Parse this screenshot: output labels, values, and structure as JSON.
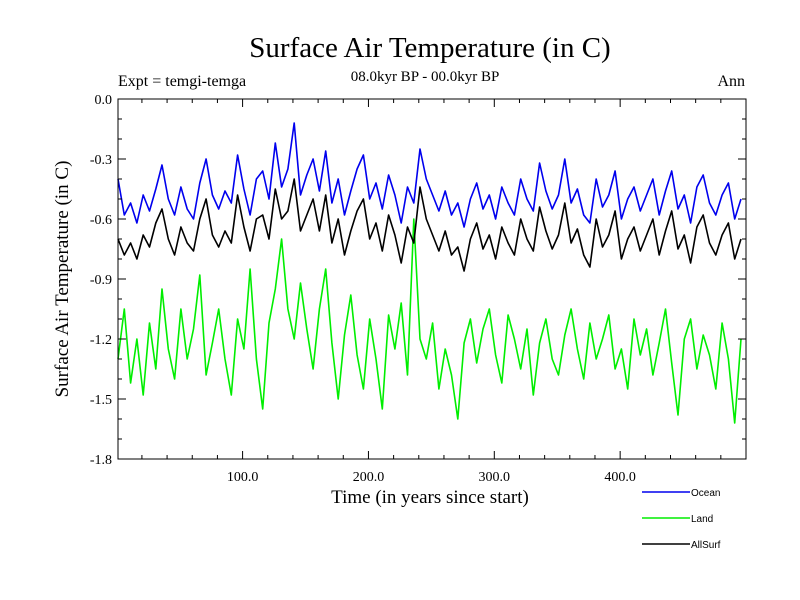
{
  "chart_data": {
    "type": "line",
    "title": "Surface Air Temperature (in C)",
    "subtitle": "08.0kyr BP - 00.0kyr BP",
    "left_label": "Expt = temgi-temga",
    "right_label": "Ann",
    "xlabel": "Time (in years since start)",
    "ylabel": "Surface Air Temperature (in C)",
    "xlim": [
      1,
      500
    ],
    "ylim": [
      -1.8,
      0.0
    ],
    "x_ticks": [
      100,
      200,
      300,
      400
    ],
    "x_tick_labels": [
      "100.0",
      "200.0",
      "300.0",
      "400.0"
    ],
    "y_ticks": [
      0.0,
      -0.3,
      -0.6,
      -0.9,
      -1.2,
      -1.5,
      -1.8
    ],
    "y_tick_labels": [
      "0.0",
      "-0.3",
      "-0.6",
      "-0.9",
      "-1.2",
      "-1.5",
      "-1.8"
    ],
    "x_start": 1,
    "x_step": 5,
    "series": [
      {
        "name": "Ocean",
        "color": "#0000ee",
        "values": [
          -0.4,
          -0.58,
          -0.52,
          -0.62,
          -0.48,
          -0.56,
          -0.45,
          -0.33,
          -0.5,
          -0.58,
          -0.44,
          -0.55,
          -0.6,
          -0.42,
          -0.3,
          -0.48,
          -0.55,
          -0.46,
          -0.52,
          -0.28,
          -0.45,
          -0.58,
          -0.4,
          -0.36,
          -0.5,
          -0.22,
          -0.44,
          -0.35,
          -0.12,
          -0.48,
          -0.38,
          -0.3,
          -0.46,
          -0.26,
          -0.52,
          -0.4,
          -0.58,
          -0.46,
          -0.35,
          -0.28,
          -0.5,
          -0.42,
          -0.55,
          -0.38,
          -0.48,
          -0.62,
          -0.44,
          -0.52,
          -0.25,
          -0.4,
          -0.48,
          -0.56,
          -0.46,
          -0.58,
          -0.52,
          -0.64,
          -0.5,
          -0.42,
          -0.55,
          -0.48,
          -0.6,
          -0.44,
          -0.52,
          -0.58,
          -0.4,
          -0.5,
          -0.56,
          -0.32,
          -0.46,
          -0.55,
          -0.48,
          -0.3,
          -0.52,
          -0.45,
          -0.58,
          -0.62,
          -0.4,
          -0.54,
          -0.48,
          -0.36,
          -0.6,
          -0.5,
          -0.44,
          -0.56,
          -0.48,
          -0.4,
          -0.58,
          -0.46,
          -0.36,
          -0.55,
          -0.48,
          -0.62,
          -0.44,
          -0.38,
          -0.52,
          -0.58,
          -0.48,
          -0.42,
          -0.6,
          -0.5
        ]
      },
      {
        "name": "Land",
        "color": "#00ee00",
        "values": [
          -1.3,
          -1.05,
          -1.42,
          -1.2,
          -1.48,
          -1.12,
          -1.35,
          -0.95,
          -1.25,
          -1.4,
          -1.05,
          -1.3,
          -1.15,
          -0.88,
          -1.38,
          -1.22,
          -1.05,
          -1.3,
          -1.48,
          -1.1,
          -1.25,
          -0.85,
          -1.3,
          -1.55,
          -1.12,
          -0.95,
          -0.7,
          -1.05,
          -1.2,
          -0.92,
          -1.15,
          -1.35,
          -1.05,
          -0.85,
          -1.22,
          -1.5,
          -1.18,
          -0.98,
          -1.28,
          -1.45,
          -1.1,
          -1.3,
          -1.55,
          -1.08,
          -1.25,
          -1.02,
          -1.38,
          -0.6,
          -1.2,
          -1.3,
          -1.12,
          -1.45,
          -1.25,
          -1.38,
          -1.6,
          -1.22,
          -1.1,
          -1.32,
          -1.15,
          -1.05,
          -1.28,
          -1.42,
          -1.08,
          -1.2,
          -1.35,
          -1.15,
          -1.48,
          -1.22,
          -1.1,
          -1.3,
          -1.38,
          -1.18,
          -1.05,
          -1.25,
          -1.4,
          -1.12,
          -1.3,
          -1.2,
          -1.08,
          -1.35,
          -1.25,
          -1.45,
          -1.1,
          -1.28,
          -1.15,
          -1.38,
          -1.22,
          -1.05,
          -1.32,
          -1.58,
          -1.2,
          -1.1,
          -1.35,
          -1.18,
          -1.28,
          -1.45,
          -1.12,
          -1.3,
          -1.62,
          -1.2
        ]
      },
      {
        "name": "AllSurf",
        "color": "#000000",
        "values": [
          -0.7,
          -0.78,
          -0.72,
          -0.8,
          -0.68,
          -0.74,
          -0.62,
          -0.55,
          -0.7,
          -0.78,
          -0.64,
          -0.72,
          -0.76,
          -0.6,
          -0.5,
          -0.68,
          -0.74,
          -0.66,
          -0.72,
          -0.48,
          -0.64,
          -0.76,
          -0.6,
          -0.58,
          -0.7,
          -0.45,
          -0.6,
          -0.56,
          -0.4,
          -0.66,
          -0.58,
          -0.5,
          -0.66,
          -0.48,
          -0.72,
          -0.6,
          -0.78,
          -0.66,
          -0.56,
          -0.5,
          -0.7,
          -0.62,
          -0.76,
          -0.58,
          -0.68,
          -0.82,
          -0.64,
          -0.72,
          -0.44,
          -0.6,
          -0.68,
          -0.76,
          -0.66,
          -0.78,
          -0.74,
          -0.86,
          -0.7,
          -0.62,
          -0.75,
          -0.68,
          -0.8,
          -0.64,
          -0.72,
          -0.78,
          -0.6,
          -0.7,
          -0.76,
          -0.54,
          -0.66,
          -0.75,
          -0.68,
          -0.52,
          -0.72,
          -0.65,
          -0.78,
          -0.84,
          -0.6,
          -0.74,
          -0.68,
          -0.56,
          -0.8,
          -0.7,
          -0.64,
          -0.76,
          -0.68,
          -0.6,
          -0.78,
          -0.66,
          -0.56,
          -0.75,
          -0.68,
          -0.82,
          -0.64,
          -0.58,
          -0.72,
          -0.78,
          -0.68,
          -0.62,
          -0.8,
          -0.7
        ]
      }
    ]
  }
}
